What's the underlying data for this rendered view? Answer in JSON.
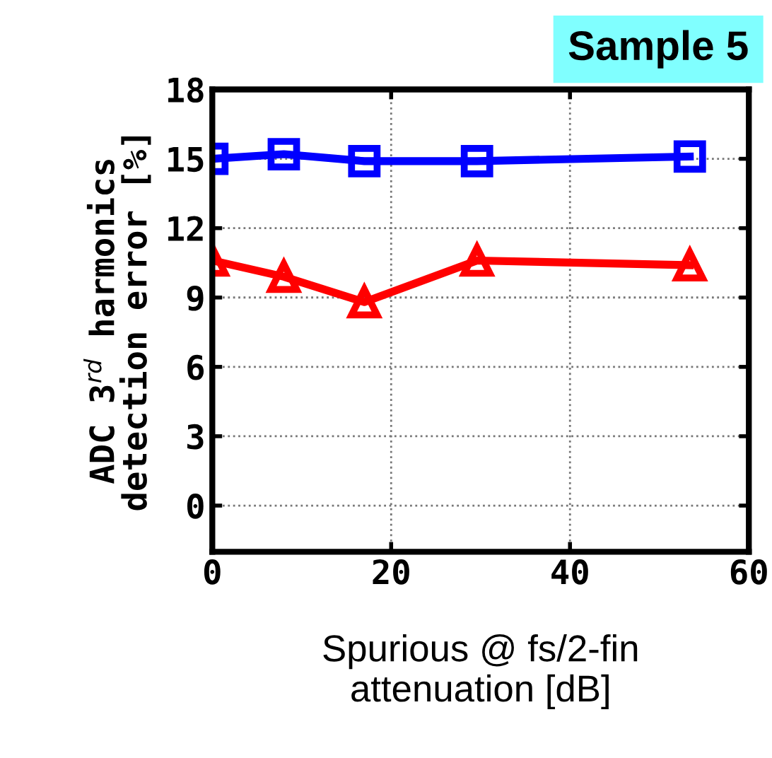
{
  "chart_data": {
    "type": "line",
    "xlabel": "Spurious @ fs/2-fin\nattenuation [dB]",
    "ylabel": "ADC 3$^{rd}$ harmonics\ndetection error [%]",
    "x": [
      0,
      8,
      17,
      29.6,
      53.4
    ],
    "series": [
      {
        "color": "#0000ff",
        "marker": "square",
        "values": [
          15.0,
          15.2,
          14.9,
          14.9,
          15.1
        ]
      },
      {
        "color": "#ff0000",
        "marker": "triangle",
        "values": [
          10.6,
          9.9,
          8.8,
          10.6,
          10.4
        ]
      }
    ],
    "xlim": [
      0,
      60
    ],
    "xticks": [
      0,
      20,
      40,
      60
    ],
    "ylim": [
      -2,
      18
    ],
    "yticks": [
      0,
      3,
      6,
      9,
      12,
      15,
      18
    ],
    "grid": true,
    "line_style": "solid",
    "annotations": [
      "Sample 5"
    ]
  }
}
